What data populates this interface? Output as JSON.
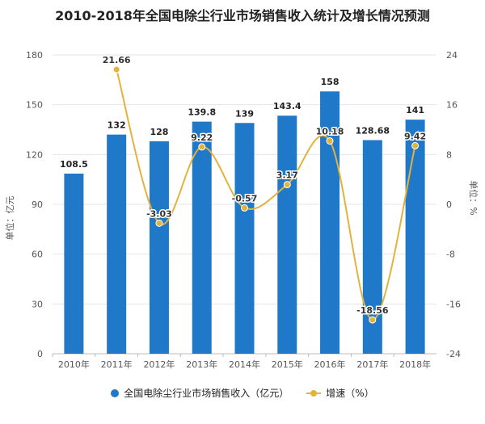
{
  "title": "2010-2018年全国电除尘行业市场销售收入统计及增长情况预测",
  "colors": {
    "bar": "#1f78c8",
    "line": "#e2b33c"
  },
  "chart_data": {
    "type": "bar+line",
    "title": "2010-2018年全国电除尘行业市场销售收入统计及增长情况预测",
    "categories": [
      "2010年",
      "2011年",
      "2012年",
      "2013年",
      "2014年",
      "2015年",
      "2016年",
      "2017年",
      "2018年"
    ],
    "series": [
      {
        "name": "全国电除尘行业市场销售收入（亿元）",
        "type": "bar",
        "axis": "left",
        "values": [
          108.5,
          132,
          128,
          139.8,
          139,
          143.4,
          158,
          128.68,
          141
        ],
        "labels": [
          "108.5",
          "132",
          "128",
          "139.8",
          "139",
          "143.4",
          "158",
          "128.68",
          "141"
        ]
      },
      {
        "name": "增速（%）",
        "type": "line",
        "axis": "right",
        "values": [
          null,
          21.66,
          -3.03,
          9.22,
          -0.57,
          3.17,
          10.18,
          -18.56,
          9.42
        ],
        "labels": [
          "",
          "21.66",
          "-3.03",
          "9.22",
          "-0.57",
          "3.17",
          "10.18",
          "-18.56",
          "9.42"
        ]
      }
    ],
    "ylabel": "单位：亿元",
    "ylim": [
      0,
      180
    ],
    "yticks": [
      "0",
      "30",
      "60",
      "90",
      "120",
      "150",
      "180"
    ],
    "y2label": "单位：%",
    "y2lim": [
      -24,
      24
    ],
    "y2ticks": [
      "-24",
      "-16",
      "-8",
      "0",
      "8",
      "16",
      "24"
    ],
    "grid": true,
    "legend": "bottom"
  },
  "legend": {
    "bar": "全国电除尘行业市场销售收入（亿元）",
    "line": "增速（%）"
  }
}
